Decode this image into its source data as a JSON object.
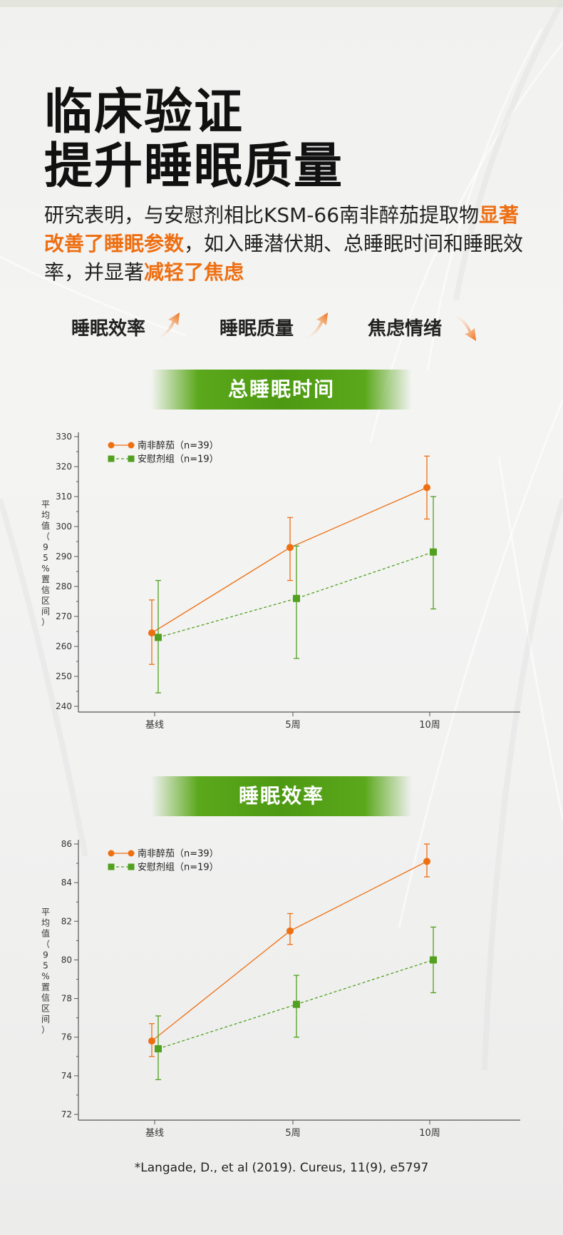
{
  "headline": {
    "line1": "临床验证",
    "line2": "提升睡眠质量"
  },
  "intro": {
    "part1": "研究表明，与安慰剂相比KSM-66南非醉茄提取物",
    "highlight1": "显著改善了睡眠参数",
    "part2": "，如入睡潜伏期、总睡眠时间和睡眠效率，并显著",
    "highlight2": "减轻了焦虑"
  },
  "features": [
    {
      "label": "睡眠效率",
      "trend": "up"
    },
    {
      "label": "睡眠质量",
      "trend": "up"
    },
    {
      "label": "焦虑情绪",
      "trend": "down"
    }
  ],
  "colors": {
    "orange": "#ee6f12",
    "green": "#52a020",
    "banner": "#4d9a12"
  },
  "chart_data": [
    {
      "type": "line",
      "title": "总睡眠时间",
      "categories": [
        "基线",
        "5周",
        "10周"
      ],
      "ylabel": "平均值（95%置信区间）",
      "ylim": [
        240,
        330
      ],
      "yticks": [
        240,
        250,
        260,
        270,
        280,
        290,
        300,
        310,
        320,
        330
      ],
      "legend_position": "top-left",
      "grid": false,
      "series": [
        {
          "name": "南非醉茄（n=39）",
          "marker": "circle",
          "style": "solid",
          "color": "#ee6f12",
          "values": [
            264.5,
            293,
            313
          ],
          "lower": [
            254,
            282,
            302.5
          ],
          "upper": [
            275.5,
            303,
            323.5
          ]
        },
        {
          "name": "安慰剂组（n=19）",
          "marker": "square",
          "style": "dashed",
          "color": "#52a020",
          "values": [
            263,
            276,
            291.5
          ],
          "lower": [
            244.5,
            256,
            272.5
          ],
          "upper": [
            282,
            293.5,
            310
          ]
        }
      ]
    },
    {
      "type": "line",
      "title": "睡眠效率",
      "categories": [
        "基线",
        "5周",
        "10周"
      ],
      "ylabel": "平均值（95%置信区间）",
      "ylim": [
        72,
        86
      ],
      "yticks": [
        72,
        74,
        76,
        78,
        80,
        82,
        84,
        86
      ],
      "legend_position": "top-left",
      "grid": false,
      "series": [
        {
          "name": "南非醉茄（n=39）",
          "marker": "circle",
          "style": "solid",
          "color": "#ee6f12",
          "values": [
            75.8,
            81.5,
            85.1
          ],
          "lower": [
            75.0,
            80.8,
            84.3
          ],
          "upper": [
            76.7,
            82.4,
            86.0
          ]
        },
        {
          "name": "安慰剂组（n=19）",
          "marker": "square",
          "style": "dashed",
          "color": "#52a020",
          "values": [
            75.4,
            77.7,
            80.0
          ],
          "lower": [
            73.8,
            76.0,
            78.3
          ],
          "upper": [
            77.1,
            79.2,
            81.7
          ]
        }
      ]
    }
  ],
  "citation": "*Langade, D., et al (2019). Cureus, 11(9), e5797"
}
